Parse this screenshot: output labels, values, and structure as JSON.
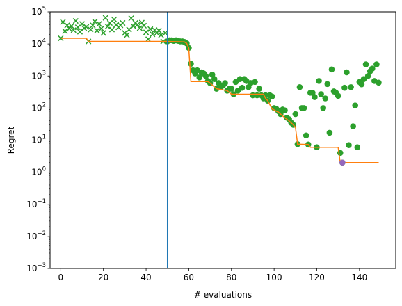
{
  "chart_data": {
    "type": "scatter",
    "xlabel": "# evaluations",
    "ylabel": "Regret",
    "xlim": [
      -5,
      157
    ],
    "ylim": [
      0.001,
      100000
    ],
    "y_scale": "log",
    "x_ticks": [
      0,
      20,
      40,
      60,
      80,
      100,
      120,
      140
    ],
    "y_ticks": [
      {
        "value": 0.001,
        "base": "10",
        "exp": "−3"
      },
      {
        "value": 0.01,
        "base": "10",
        "exp": "−2"
      },
      {
        "value": 0.1,
        "base": "10",
        "exp": "−1"
      },
      {
        "value": 1,
        "base": "10",
        "exp": "0"
      },
      {
        "value": 10,
        "base": "10",
        "exp": "1"
      },
      {
        "value": 100,
        "base": "10",
        "exp": "2"
      },
      {
        "value": 1000,
        "base": "10",
        "exp": "3"
      },
      {
        "value": 10000,
        "base": "10",
        "exp": "4"
      },
      {
        "value": 100000,
        "base": "10",
        "exp": "5"
      }
    ],
    "grid": false,
    "vline": {
      "x": 50,
      "color": "#1f77b4"
    },
    "colors": {
      "points": "#2ca02c",
      "incumbent": "#ff7f0e",
      "best": "#9467bd"
    },
    "series": [
      {
        "marker": "x",
        "points": [
          [
            0,
            15000
          ],
          [
            1,
            48000
          ],
          [
            2,
            25000
          ],
          [
            3,
            38000
          ],
          [
            4,
            30000
          ],
          [
            5,
            36000
          ],
          [
            6,
            27000
          ],
          [
            7,
            52000
          ],
          [
            8,
            33000
          ],
          [
            9,
            24000
          ],
          [
            10,
            42000
          ],
          [
            11,
            31000
          ],
          [
            12,
            34000
          ],
          [
            13,
            12000
          ],
          [
            14,
            28000
          ],
          [
            15,
            38000
          ],
          [
            16,
            50000
          ],
          [
            17,
            26000
          ],
          [
            18,
            42000
          ],
          [
            19,
            30000
          ],
          [
            20,
            22000
          ],
          [
            21,
            65000
          ],
          [
            22,
            35000
          ],
          [
            23,
            45000
          ],
          [
            24,
            28000
          ],
          [
            25,
            58000
          ],
          [
            26,
            40000
          ],
          [
            27,
            33000
          ],
          [
            28,
            38000
          ],
          [
            29,
            45000
          ],
          [
            30,
            22000
          ],
          [
            31,
            19000
          ],
          [
            32,
            28000
          ],
          [
            33,
            63000
          ],
          [
            34,
            36000
          ],
          [
            35,
            45000
          ],
          [
            36,
            40000
          ],
          [
            37,
            31000
          ],
          [
            38,
            46000
          ],
          [
            39,
            37000
          ],
          [
            40,
            23000
          ],
          [
            41,
            14000
          ],
          [
            42,
            29000
          ],
          [
            43,
            20000
          ],
          [
            44,
            27000
          ],
          [
            45,
            22000
          ],
          [
            46,
            26000
          ],
          [
            47,
            19000
          ],
          [
            48,
            12000
          ],
          [
            49,
            22000
          ]
        ]
      },
      {
        "marker": "o",
        "points": [
          [
            50,
            12000
          ],
          [
            51,
            13000
          ],
          [
            52,
            13000
          ],
          [
            53,
            12500
          ],
          [
            54,
            13000
          ],
          [
            55,
            12500
          ],
          [
            56,
            12000
          ],
          [
            57,
            12000
          ],
          [
            58,
            11500
          ],
          [
            59,
            10500
          ],
          [
            60,
            7500
          ],
          [
            61,
            2400
          ],
          [
            62,
            1500
          ],
          [
            63,
            1200
          ],
          [
            64,
            1500
          ],
          [
            65,
            900
          ],
          [
            66,
            1300
          ],
          [
            67,
            1200
          ],
          [
            68,
            1000
          ],
          [
            69,
            700
          ],
          [
            70,
            600
          ],
          [
            71,
            1100
          ],
          [
            72,
            800
          ],
          [
            73,
            400
          ],
          [
            74,
            600
          ],
          [
            75,
            450
          ],
          [
            76,
            500
          ],
          [
            77,
            600
          ],
          [
            78,
            350
          ],
          [
            79,
            400
          ],
          [
            80,
            400
          ],
          [
            81,
            270
          ],
          [
            82,
            650
          ],
          [
            83,
            350
          ],
          [
            84,
            800
          ],
          [
            85,
            430
          ],
          [
            86,
            800
          ],
          [
            87,
            700
          ],
          [
            88,
            450
          ],
          [
            89,
            600
          ],
          [
            90,
            250
          ],
          [
            91,
            650
          ],
          [
            92,
            250
          ],
          [
            93,
            400
          ],
          [
            94,
            250
          ],
          [
            95,
            200
          ],
          [
            96,
            250
          ],
          [
            97,
            170
          ],
          [
            98,
            250
          ],
          [
            99,
            230
          ],
          [
            100,
            100
          ],
          [
            101,
            95
          ],
          [
            102,
            80
          ],
          [
            103,
            65
          ],
          [
            104,
            90
          ],
          [
            105,
            85
          ],
          [
            106,
            50
          ],
          [
            107,
            45
          ],
          [
            108,
            35
          ],
          [
            109,
            30
          ],
          [
            110,
            65
          ],
          [
            111,
            7.5
          ],
          [
            112,
            450
          ],
          [
            113,
            100
          ],
          [
            114,
            100
          ],
          [
            115,
            14
          ],
          [
            116,
            7.3
          ],
          [
            117,
            300
          ],
          [
            118,
            300
          ],
          [
            119,
            220
          ],
          [
            120,
            6
          ],
          [
            121,
            700
          ],
          [
            122,
            270
          ],
          [
            123,
            100
          ],
          [
            124,
            200
          ],
          [
            125,
            560
          ],
          [
            126,
            17
          ],
          [
            127,
            1600
          ],
          [
            128,
            330
          ],
          [
            129,
            300
          ],
          [
            130,
            240
          ],
          [
            131,
            4
          ],
          [
            132,
            2
          ],
          [
            133,
            430
          ],
          [
            134,
            1300
          ],
          [
            135,
            7
          ],
          [
            136,
            450
          ],
          [
            137,
            27
          ],
          [
            138,
            120
          ],
          [
            139,
            6
          ],
          [
            140,
            650
          ],
          [
            141,
            550
          ],
          [
            142,
            800
          ],
          [
            143,
            2300
          ],
          [
            144,
            1000
          ],
          [
            145,
            1400
          ],
          [
            146,
            1700
          ],
          [
            147,
            700
          ],
          [
            148,
            2300
          ],
          [
            149,
            620
          ]
        ]
      },
      {
        "marker": "line",
        "points": [
          [
            0,
            15000
          ],
          [
            12,
            15000
          ],
          [
            13,
            12000
          ],
          [
            49,
            12000
          ],
          [
            50,
            12000
          ],
          [
            58,
            11500
          ],
          [
            59,
            10500
          ],
          [
            60,
            7500
          ],
          [
            61,
            670
          ],
          [
            69,
            670
          ],
          [
            70,
            600
          ],
          [
            72,
            450
          ],
          [
            73,
            400
          ],
          [
            78,
            350
          ],
          [
            80,
            270
          ],
          [
            95,
            270
          ],
          [
            96,
            200
          ],
          [
            97,
            170
          ],
          [
            99,
            95
          ],
          [
            101,
            80
          ],
          [
            102,
            75
          ],
          [
            103,
            65
          ],
          [
            105,
            50
          ],
          [
            107,
            40
          ],
          [
            109,
            30
          ],
          [
            110,
            25
          ],
          [
            111,
            7.5
          ],
          [
            116,
            7.3
          ],
          [
            117,
            6
          ],
          [
            130,
            6
          ],
          [
            131,
            2
          ],
          [
            149,
            2
          ]
        ]
      },
      {
        "marker": "best",
        "points": [
          [
            132,
            2
          ]
        ]
      }
    ]
  }
}
